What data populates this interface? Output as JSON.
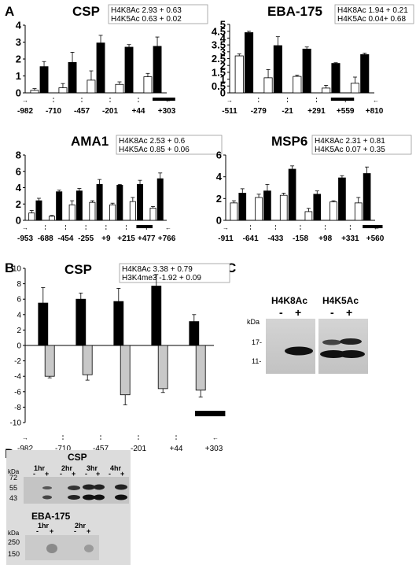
{
  "panel_labels": [
    "A",
    "B",
    "C",
    "D"
  ],
  "chart_data": [
    {
      "id": "csp",
      "type": "bar",
      "title": "CSP",
      "stats": [
        "H4K8Ac 2.93 + 0.63",
        "H4K5Ac 0.63 + 0.02"
      ],
      "ylim": [
        0,
        4
      ],
      "yticks": [
        0,
        1,
        2,
        3,
        4
      ],
      "x_tick_labels": [
        "-982",
        "-710",
        "-457",
        "-201",
        "+44",
        "+303"
      ],
      "series": [
        {
          "color": "#ffffff",
          "values": [
            0.15,
            0.3,
            0.75,
            0.5,
            0.95
          ],
          "errors": [
            0.1,
            0.25,
            0.55,
            0.15,
            0.2
          ]
        },
        {
          "color": "#000000",
          "values": [
            1.55,
            1.8,
            2.95,
            2.7,
            2.75
          ],
          "errors": [
            0.3,
            0.6,
            0.45,
            0.15,
            0.55
          ]
        }
      ],
      "gene_bar_after_category": 4
    },
    {
      "id": "eba175",
      "type": "bar",
      "title": "EBA-175",
      "stats": [
        "H4K8Ac 1.94 + 0.21",
        "H4K5Ac 0.04+ 0.68"
      ],
      "ylim": [
        0,
        5
      ],
      "yticks": [
        0,
        0.5,
        1,
        1.5,
        2,
        2.5,
        3,
        3.5,
        4,
        4.5,
        5
      ],
      "ytick_labels": [
        "0",
        "0.5",
        "1",
        "1.5",
        "2",
        "2.5",
        "3",
        "3.5",
        "4",
        "4.5",
        "5"
      ],
      "x_tick_labels": [
        "-511",
        "-279",
        "-21",
        "+291",
        "+559",
        "+810"
      ],
      "series": [
        {
          "color": "#ffffff",
          "values": [
            2.7,
            1.1,
            1.2,
            0.35,
            0.7
          ],
          "errors": [
            0.15,
            0.6,
            0.1,
            0.2,
            0.45
          ]
        },
        {
          "color": "#000000",
          "values": [
            4.4,
            3.45,
            3.2,
            2.15,
            2.8
          ],
          "errors": [
            0.1,
            0.65,
            0.15,
            0.05,
            0.1
          ]
        }
      ],
      "gene_bar_after_category": 3
    },
    {
      "id": "ama1",
      "type": "bar",
      "title": "AMA1",
      "stats": [
        "H4K8Ac 2.53 + 0.6",
        "H4K5Ac 0.85 + 0.06"
      ],
      "ylim": [
        0,
        8
      ],
      "yticks": [
        0,
        2,
        4,
        6,
        8
      ],
      "x_tick_labels": [
        "-953",
        "-688",
        "-454",
        "-255",
        "+9",
        "+215",
        "+477",
        "+766"
      ],
      "series": [
        {
          "color": "#ffffff",
          "values": [
            0.9,
            0.5,
            1.9,
            2.2,
            1.9,
            2.3,
            1.5
          ],
          "errors": [
            0.3,
            0.1,
            0.5,
            0.2,
            0.2,
            0.5,
            0.2
          ]
        },
        {
          "color": "#000000",
          "values": [
            2.4,
            3.5,
            3.6,
            4.4,
            4.3,
            4.4,
            5.1
          ],
          "errors": [
            0.3,
            0.2,
            0.3,
            0.6,
            0.1,
            0.5,
            0.7
          ]
        }
      ],
      "gene_bar_after_category": 5
    },
    {
      "id": "msp6",
      "type": "bar",
      "title": "MSP6",
      "stats": [
        "H4K8Ac 2.31 + 0.81",
        "H4K5Ac 0.07 + 0.35"
      ],
      "ylim": [
        0,
        6
      ],
      "yticks": [
        0,
        2,
        4,
        6
      ],
      "x_tick_labels": [
        "-911",
        "-641",
        "-433",
        "-158",
        "+98",
        "+331",
        "+560"
      ],
      "series": [
        {
          "color": "#ffffff",
          "values": [
            1.6,
            2.1,
            2.3,
            0.8,
            1.7,
            1.6
          ],
          "errors": [
            0.2,
            0.3,
            0.2,
            0.3,
            0.1,
            0.5
          ]
        },
        {
          "color": "#000000",
          "values": [
            2.5,
            2.7,
            4.7,
            2.4,
            3.9,
            4.3
          ],
          "errors": [
            0.4,
            0.6,
            0.3,
            0.3,
            0.2,
            0.6
          ]
        }
      ],
      "gene_bar_after_category": 5
    },
    {
      "id": "csp_b",
      "type": "bar",
      "title": "CSP",
      "stats": [
        "H4K8Ac 3.38 + 0.79",
        "H3K4me3 -1.92 + 0.09"
      ],
      "ylim": [
        -10,
        10
      ],
      "yticks": [
        -10,
        -8,
        -6,
        -4,
        -2,
        0,
        2,
        4,
        6,
        8,
        10
      ],
      "x_tick_labels": [
        "-982",
        "-710",
        "-457",
        "-201",
        "+44",
        "+303"
      ],
      "series": [
        {
          "color": "#000000",
          "values": [
            5.5,
            6.0,
            5.7,
            7.7,
            3.1
          ],
          "errors": [
            2.0,
            0.8,
            1.7,
            1.5,
            0.9
          ]
        },
        {
          "color": "#c8c8c8",
          "values": [
            -4.0,
            -3.8,
            -6.4,
            -5.6,
            -5.8
          ],
          "errors": [
            0.2,
            0.7,
            1.3,
            0.5,
            0.9
          ]
        }
      ],
      "gene_bar_after_category": 4
    }
  ],
  "blot_c": {
    "kda_label": "kDa",
    "markers": [
      "17-",
      "11-"
    ],
    "lanes": [
      {
        "title": "H4K8Ac",
        "signs": [
          "-",
          "+"
        ]
      },
      {
        "title": "H4K5Ac",
        "signs": [
          "-",
          "+"
        ]
      }
    ]
  },
  "blot_d": {
    "top": {
      "title": "CSP",
      "kda_label": "kDa",
      "markers": [
        "72",
        "55",
        "43"
      ],
      "times": [
        "1hr",
        "2hr",
        "3hr",
        "4hr"
      ],
      "signs": [
        "-",
        "+"
      ]
    },
    "bottom": {
      "title": "EBA-175",
      "kda_label": "kDa",
      "markers": [
        "250",
        "150"
      ],
      "times": [
        "1hr",
        "2hr"
      ],
      "signs": [
        "-",
        "+"
      ]
    }
  }
}
